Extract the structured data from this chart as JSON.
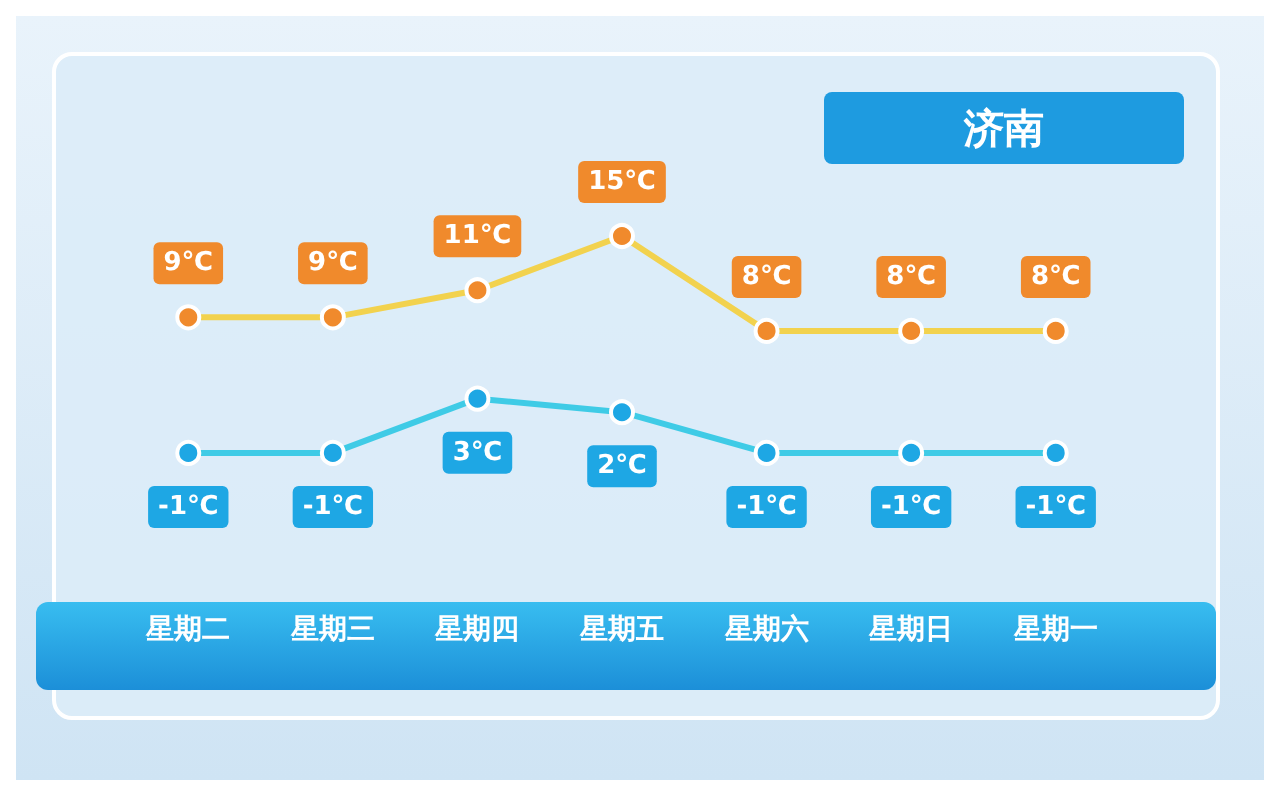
{
  "chart_data": {
    "type": "line",
    "title": "济南",
    "categories": [
      "星期二",
      "星期三",
      "星期四",
      "星期五",
      "星期六",
      "星期日",
      "星期一"
    ],
    "marker": "circle",
    "line_style": "solid",
    "series": [
      {
        "color": "#f2d24e",
        "values": [
          9,
          9,
          11,
          15,
          8,
          8,
          8
        ],
        "value_labels": [
          "9℃",
          "9℃",
          "11℃",
          "15℃",
          "8℃",
          "8℃",
          "8℃"
        ]
      },
      {
        "color": "#3fcbe6",
        "values": [
          -1,
          -1,
          3,
          2,
          -1,
          -1,
          -1
        ],
        "value_labels": [
          "-1℃",
          "-1℃",
          "3℃",
          "2℃",
          "-1℃",
          "-1℃",
          "-1℃"
        ]
      }
    ]
  }
}
